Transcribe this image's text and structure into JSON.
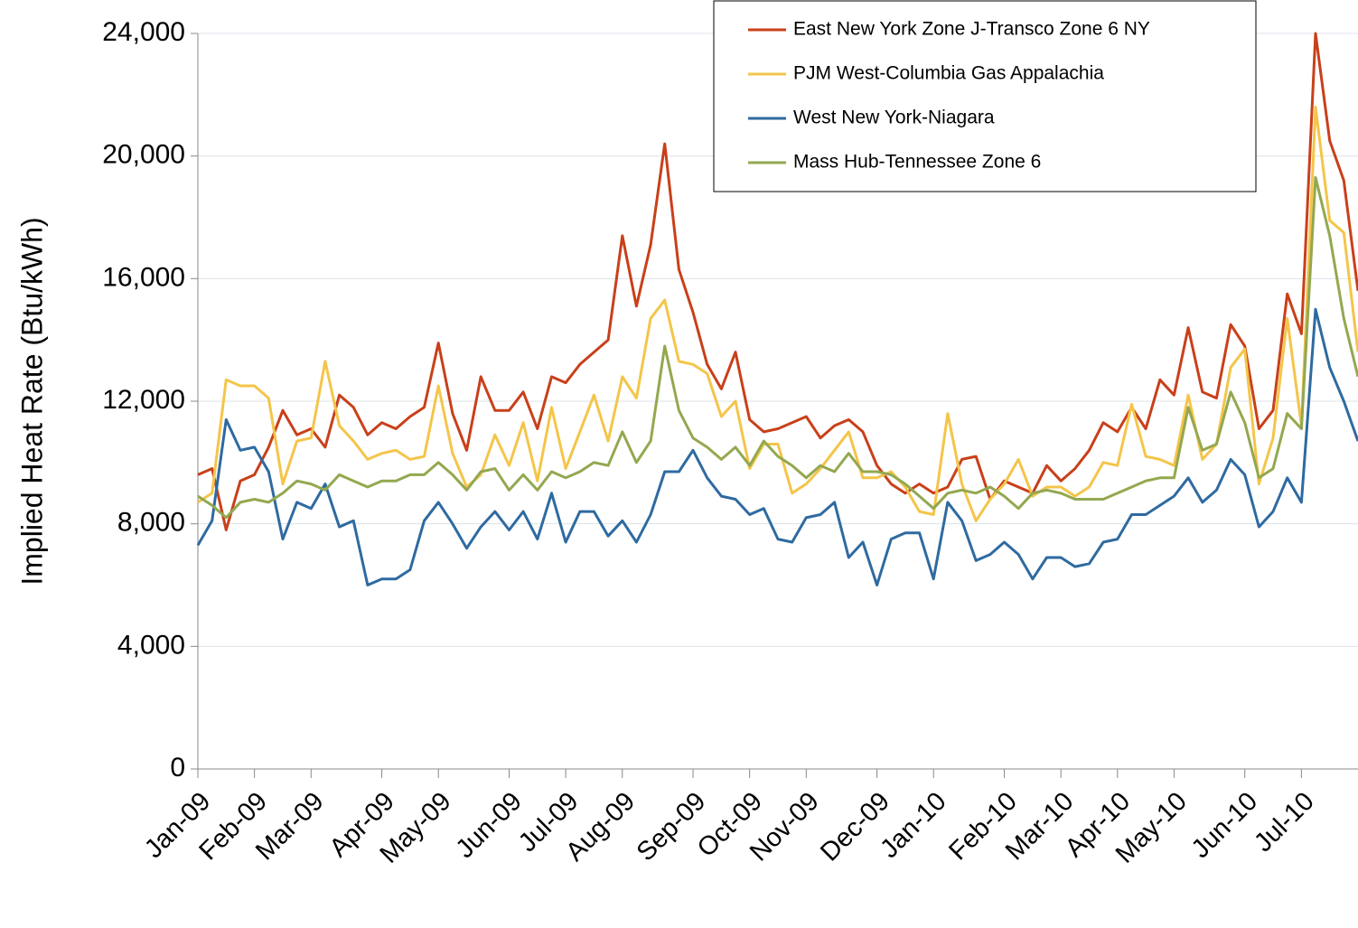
{
  "chart_data": {
    "type": "line",
    "y_label": "Implied Heat Rate (Btu/kWh)",
    "categories": [
      "Jan-09",
      null,
      null,
      null,
      "Feb-09",
      null,
      null,
      null,
      "Mar-09",
      null,
      null,
      null,
      null,
      "Apr-09",
      null,
      null,
      null,
      "May-09",
      null,
      null,
      null,
      null,
      "Jun-09",
      null,
      null,
      null,
      "Jul-09",
      null,
      null,
      null,
      "Aug-09",
      null,
      null,
      null,
      null,
      "Sep-09",
      null,
      null,
      null,
      "Oct-09",
      null,
      null,
      null,
      "Nov-09",
      null,
      null,
      null,
      null,
      "Dec-09",
      null,
      null,
      null,
      "Jan-10",
      null,
      null,
      null,
      null,
      "Feb-10",
      null,
      null,
      null,
      "Mar-10",
      null,
      null,
      null,
      "Apr-10",
      null,
      null,
      null,
      "May-10",
      null,
      null,
      null,
      null,
      "Jun-10",
      null,
      null,
      null,
      "Jul-10",
      null,
      null,
      null,
      null
    ],
    "series": [
      {
        "name": "East New York Zone J-Transco Zone 6 NY",
        "color": "#c8401a",
        "values": [
          9600,
          9800,
          7800,
          9400,
          9600,
          10500,
          11700,
          10900,
          11100,
          10500,
          12200,
          11800,
          10900,
          11300,
          11100,
          11500,
          11800,
          13900,
          11600,
          10400,
          12800,
          11700,
          11700,
          12300,
          11100,
          12800,
          12600,
          13200,
          13600,
          14000,
          17400,
          15100,
          17100,
          20400,
          16300,
          14900,
          13200,
          12400,
          13600,
          11400,
          11000,
          11100,
          11300,
          11500,
          10800,
          11200,
          11400,
          11000,
          9900,
          9300,
          9000,
          9300,
          9000,
          9200,
          10100,
          10200,
          8800,
          9400,
          9200,
          9000,
          9900,
          9400,
          9800,
          10400,
          11300,
          11000,
          11800,
          11100,
          12700,
          12200,
          14400,
          12300,
          12100,
          14500,
          13800,
          11100,
          11700,
          15500,
          14200,
          24000,
          20500,
          19200,
          15600
        ]
      },
      {
        "name": "PJM West-Columbia Gas Appalachia",
        "color": "#f4c54a",
        "values": [
          8700,
          9000,
          12700,
          12500,
          12500,
          12100,
          9300,
          10700,
          10800,
          13300,
          11200,
          10700,
          10100,
          10300,
          10400,
          10100,
          10200,
          12500,
          10300,
          9200,
          9600,
          10900,
          9900,
          11300,
          9400,
          11800,
          9800,
          11000,
          12200,
          10700,
          12800,
          12100,
          14700,
          15300,
          13300,
          13200,
          12900,
          11500,
          12000,
          9800,
          10600,
          10600,
          9000,
          9300,
          9800,
          10400,
          11000,
          9500,
          9500,
          9700,
          9200,
          8400,
          8300,
          11600,
          9300,
          8100,
          8800,
          9300,
          10100,
          8900,
          9200,
          9200,
          8900,
          9200,
          10000,
          9900,
          11900,
          10200,
          10100,
          9900,
          12200,
          10100,
          10600,
          13100,
          13700,
          9300,
          10800,
          14700,
          11200,
          21600,
          17900,
          17500,
          13600
        ]
      },
      {
        "name": "West New York-Niagara",
        "color": "#2e6aa0",
        "values": [
          7300,
          8100,
          11400,
          10400,
          10500,
          9700,
          7500,
          8700,
          8500,
          9300,
          7900,
          8100,
          6000,
          6200,
          6200,
          6500,
          8100,
          8700,
          8000,
          7200,
          7900,
          8400,
          7800,
          8400,
          7500,
          9000,
          7400,
          8400,
          8400,
          7600,
          8100,
          7400,
          8300,
          9700,
          9700,
          10400,
          9500,
          8900,
          8800,
          8300,
          8500,
          7500,
          7400,
          8200,
          8300,
          8700,
          6900,
          7400,
          6000,
          7500,
          7700,
          7700,
          6200,
          8700,
          8100,
          6800,
          7000,
          7400,
          7000,
          6200,
          6900,
          6900,
          6600,
          6700,
          7400,
          7500,
          8300,
          8300,
          8600,
          8900,
          9500,
          8700,
          9100,
          10100,
          9600,
          7900,
          8400,
          9500,
          8700,
          15000,
          13100,
          12000,
          10700
        ]
      },
      {
        "name": "Mass Hub-Tennessee Zone 6",
        "color": "#93a84f",
        "values": [
          8900,
          8600,
          8200,
          8700,
          8800,
          8700,
          9000,
          9400,
          9300,
          9100,
          9600,
          9400,
          9200,
          9400,
          9400,
          9600,
          9600,
          10000,
          9600,
          9100,
          9700,
          9800,
          9100,
          9600,
          9100,
          9700,
          9500,
          9700,
          10000,
          9900,
          11000,
          10000,
          10700,
          13800,
          11700,
          10800,
          10500,
          10100,
          10500,
          9900,
          10700,
          10200,
          9900,
          9500,
          9900,
          9700,
          10300,
          9700,
          9700,
          9600,
          9300,
          8900,
          8500,
          9000,
          9100,
          9000,
          9200,
          8900,
          8500,
          9000,
          9100,
          9000,
          8800,
          8800,
          8800,
          9000,
          9200,
          9400,
          9500,
          9500,
          11800,
          10400,
          10600,
          12300,
          11300,
          9500,
          9800,
          11600,
          11100,
          19300,
          17400,
          14700,
          12800
        ]
      }
    ],
    "ylim": [
      0,
      24000
    ],
    "yticks": [
      0,
      {
        "value": 4000,
        "label": "4,000"
      },
      {
        "value": 8000,
        "label": "8,000"
      },
      {
        "value": 12000,
        "label": "12,000"
      },
      {
        "value": 16000,
        "label": "16,000"
      },
      {
        "value": 20000,
        "label": "20,000"
      },
      {
        "value": 24000,
        "label": "24,000"
      }
    ],
    "grid": true,
    "legend": "upper right"
  }
}
